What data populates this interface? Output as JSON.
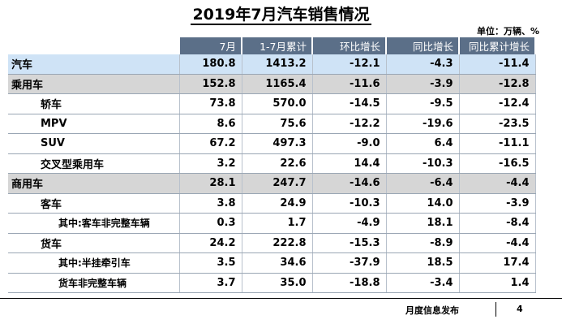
{
  "title": "2019年7月汽车销售情况",
  "unit": "单位：万辆、%",
  "columns": [
    "",
    "7月",
    "1-7月累计",
    "环比增长",
    "同比增长",
    "同比累计增长"
  ],
  "rows": [
    {
      "label": "汽车",
      "level": 0,
      "values": [
        "180.8",
        "1413.2",
        "-12.1",
        "-4.3",
        "-11.4"
      ]
    },
    {
      "label": "乘用车",
      "level": 1,
      "values": [
        "152.8",
        "1165.4",
        "-11.6",
        "-3.9",
        "-12.8"
      ]
    },
    {
      "label": "轿车",
      "level": 2,
      "values": [
        "73.8",
        "570.0",
        "-14.5",
        "-9.5",
        "-12.4"
      ]
    },
    {
      "label": "MPV",
      "level": 2,
      "values": [
        "8.6",
        "75.6",
        "-12.2",
        "-19.6",
        "-23.5"
      ]
    },
    {
      "label": "SUV",
      "level": 2,
      "values": [
        "67.2",
        "497.3",
        "-9.0",
        "6.4",
        "-11.1"
      ]
    },
    {
      "label": "交叉型乘用车",
      "level": 2,
      "values": [
        "3.2",
        "22.6",
        "14.4",
        "-10.3",
        "-16.5"
      ]
    },
    {
      "label": "商用车",
      "level": 1,
      "values": [
        "28.1",
        "247.7",
        "-14.6",
        "-6.4",
        "-4.4"
      ]
    },
    {
      "label": "客车",
      "level": 2,
      "values": [
        "3.8",
        "24.9",
        "-10.3",
        "14.0",
        "-3.9"
      ]
    },
    {
      "label": "其中:客车非完整车辆",
      "level": 3,
      "values": [
        "0.3",
        "1.7",
        "-4.9",
        "18.1",
        "-8.4"
      ]
    },
    {
      "label": "货车",
      "level": 2,
      "values": [
        "24.2",
        "222.8",
        "-15.3",
        "-8.9",
        "-4.4"
      ]
    },
    {
      "label": "其中:半挂牵引车",
      "level": 3,
      "values": [
        "3.5",
        "34.6",
        "-37.9",
        "18.5",
        "17.4"
      ]
    },
    {
      "label": "货车非完整车辆",
      "level": 3,
      "values": [
        "3.7",
        "35.0",
        "-18.8",
        "-3.4",
        "1.4"
      ]
    }
  ],
  "footer": {
    "source": "月度信息发布",
    "page": "4"
  }
}
